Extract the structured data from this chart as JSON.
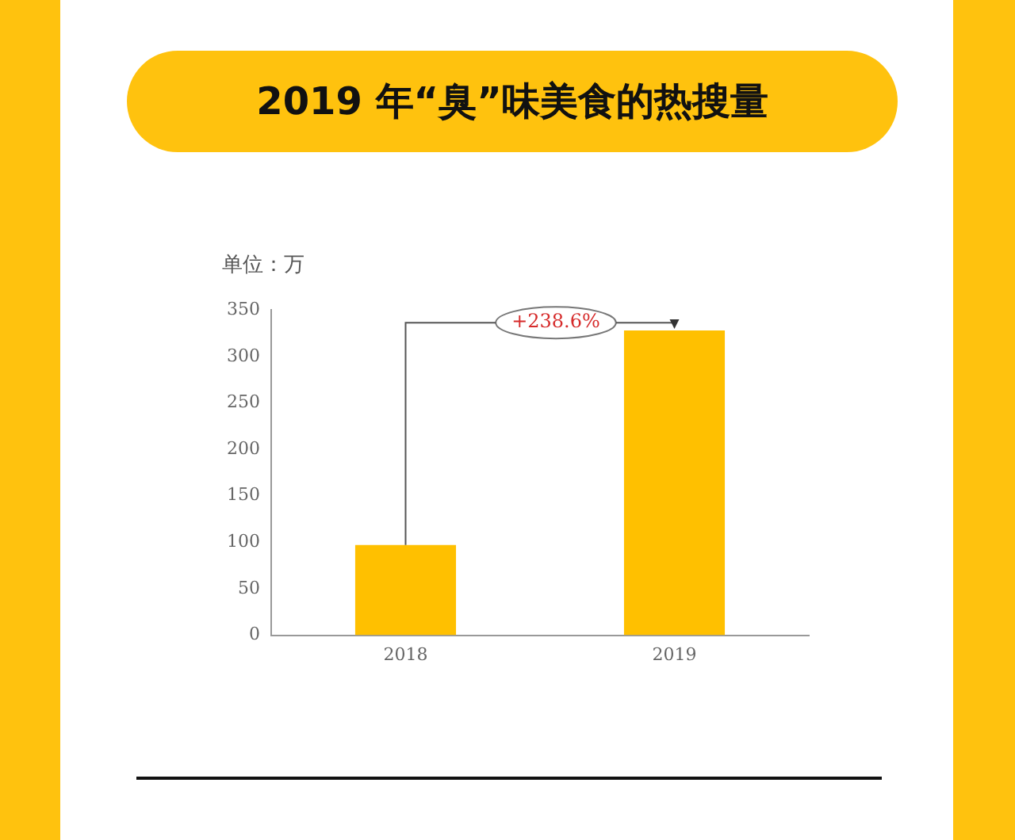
{
  "chart_data": {
    "type": "bar",
    "title": "2019 年“臭”味美食的热搜量",
    "ylabel": "单位：万",
    "categories": [
      "2018",
      "2019"
    ],
    "values": [
      97,
      328
    ],
    "color": "#ffc000",
    "ylim": [
      0,
      350
    ],
    "yticks": [
      0,
      50,
      100,
      150,
      200,
      250,
      300,
      350
    ],
    "grid": false,
    "legend": false,
    "annotations": [
      "+238.6%"
    ]
  }
}
